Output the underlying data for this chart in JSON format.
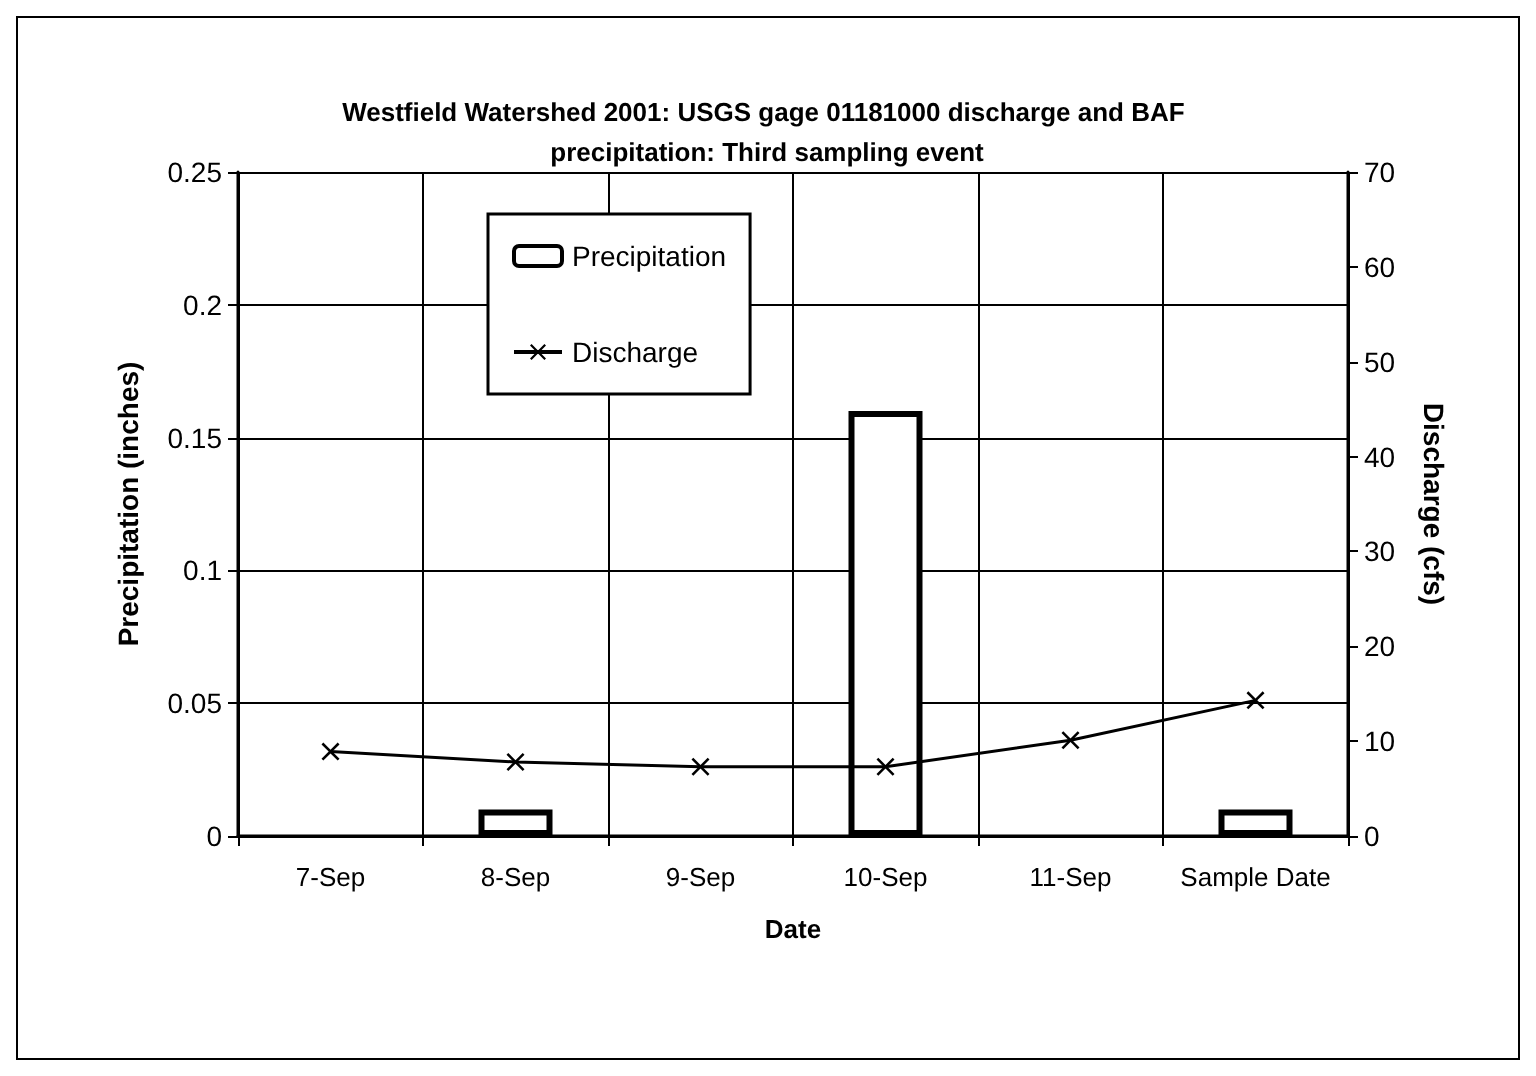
{
  "chart_data": {
    "type": "bar",
    "title": "Westfield Watershed 2001: USGS gage 01181000 discharge and BAF precipitation: Third sampling event",
    "xlabel": "Date",
    "ylabel": "Precipitation (inches)",
    "y2label": "Discharge (cfs)",
    "categories": [
      "7-Sep",
      "8-Sep",
      "9-Sep",
      "10-Sep",
      "11-Sep",
      "Sample Date"
    ],
    "series": [
      {
        "name": "Precipitation",
        "color": "#000000",
        "values": [
          0,
          0.01,
          0,
          0.16,
          0,
          0.01
        ]
      },
      {
        "name": "Discharge",
        "type": "line",
        "axis": "y2",
        "color": "#000000",
        "marker": "cross",
        "line_style": "solid",
        "values": [
          8.9,
          7.8,
          7.3,
          7.3,
          10.1,
          14.3
        ]
      }
    ],
    "ylim": [
      0,
      0.25
    ],
    "yticks": [
      0,
      0.05,
      0.1,
      0.15,
      0.2,
      0.25
    ],
    "y2lim": [
      0,
      70
    ],
    "y2ticks": [
      0,
      10,
      20,
      30,
      40,
      50,
      60,
      70
    ],
    "grid": true,
    "legend": "top left"
  }
}
